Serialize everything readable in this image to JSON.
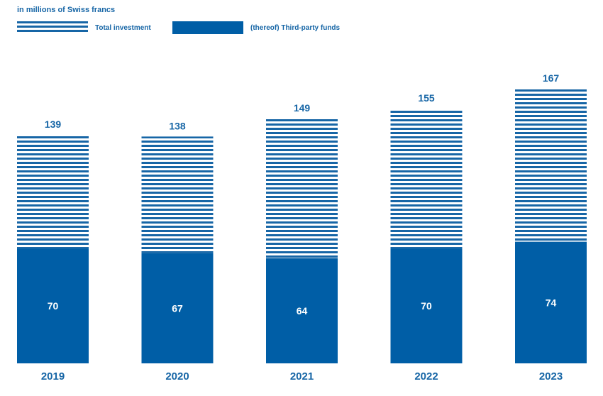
{
  "chart_data": {
    "type": "bar",
    "subtitle": "in millions of Swiss francs",
    "categories": [
      "2019",
      "2020",
      "2021",
      "2022",
      "2023"
    ],
    "series": [
      {
        "name": "Total investment",
        "values": [
          139,
          138,
          149,
          155,
          167
        ],
        "pattern": "striped"
      },
      {
        "name": "(thereof) Third-party funds",
        "values": [
          70,
          67,
          64,
          70,
          74
        ],
        "pattern": "solid"
      }
    ],
    "colors": {
      "bar": "#005ea6",
      "text": "#1766a6",
      "label_on_bar": "#ffffff"
    },
    "legend_position": "top-left",
    "grid": false
  }
}
